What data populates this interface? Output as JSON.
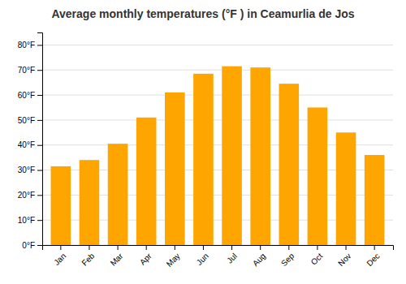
{
  "chart_data": {
    "type": "bar",
    "title": "Average monthly temperatures (°F ) in Ceamurlia de Jos",
    "categories": [
      "Jan",
      "Feb",
      "Mar",
      "Apr",
      "May",
      "Jun",
      "Jul",
      "Aug",
      "Sep",
      "Oct",
      "Nov",
      "Dec"
    ],
    "values": [
      31.5,
      34.0,
      40.5,
      51.0,
      61.0,
      68.5,
      71.5,
      71.0,
      64.5,
      55.0,
      45.0,
      36.0
    ],
    "color": "#FFA500",
    "ylim": [
      0,
      85
    ],
    "yticks": [
      {
        "value": 0,
        "label": "0°F"
      },
      {
        "value": 10,
        "label": "10°F"
      },
      {
        "value": 20,
        "label": "20°F"
      },
      {
        "value": 30,
        "label": "30°F"
      },
      {
        "value": 40,
        "label": "40°F"
      },
      {
        "value": 50,
        "label": "50°F"
      },
      {
        "value": 60,
        "label": "60°F"
      },
      {
        "value": 70,
        "label": "70°F"
      },
      {
        "value": 80,
        "label": "80°F"
      }
    ],
    "grid": true
  }
}
